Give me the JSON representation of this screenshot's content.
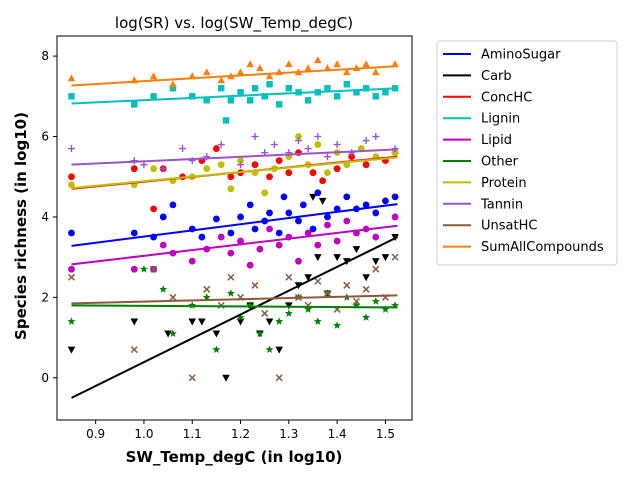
{
  "chart_data": {
    "type": "scatter",
    "title": "log(SR) vs. log(SW_Temp_degC)",
    "xlabel": "SW_Temp_degC (in log10)",
    "ylabel": "Species richness (in log10)",
    "xlim": [
      0.82,
      1.555
    ],
    "ylim": [
      -1.05,
      8.5
    ],
    "xticks": [
      0.9,
      1.0,
      1.1,
      1.2,
      1.3,
      1.4,
      1.5
    ],
    "yticks": [
      0,
      2,
      4,
      6,
      8
    ],
    "grid": false,
    "legend_position": "outside-right",
    "series": [
      {
        "name": "AminoSugar",
        "color": "#0000ff",
        "marker": "circle",
        "fit": [
          [
            0.85,
            3.28
          ],
          [
            1.525,
            4.32
          ]
        ],
        "points": [
          [
            0.85,
            3.6
          ],
          [
            0.98,
            3.6
          ],
          [
            1.02,
            3.5
          ],
          [
            1.04,
            4.0
          ],
          [
            1.06,
            4.3
          ],
          [
            1.1,
            3.7
          ],
          [
            1.12,
            3.5
          ],
          [
            1.15,
            3.95
          ],
          [
            1.18,
            3.6
          ],
          [
            1.2,
            4.0
          ],
          [
            1.22,
            4.3
          ],
          [
            1.23,
            3.7
          ],
          [
            1.25,
            3.9
          ],
          [
            1.26,
            4.1
          ],
          [
            1.28,
            3.6
          ],
          [
            1.29,
            4.5
          ],
          [
            1.3,
            4.1
          ],
          [
            1.32,
            3.9
          ],
          [
            1.33,
            4.3
          ],
          [
            1.35,
            3.7
          ],
          [
            1.36,
            4.6
          ],
          [
            1.38,
            4.0
          ],
          [
            1.4,
            4.2
          ],
          [
            1.42,
            4.5
          ],
          [
            1.44,
            4.2
          ],
          [
            1.46,
            4.3
          ],
          [
            1.48,
            4.1
          ],
          [
            1.5,
            4.4
          ],
          [
            1.52,
            4.5
          ]
        ]
      },
      {
        "name": "Carb",
        "color": "#000000",
        "marker": "triangle-down",
        "fit": [
          [
            0.85,
            -0.5
          ],
          [
            1.525,
            3.5
          ]
        ],
        "points": [
          [
            0.85,
            0.7
          ],
          [
            0.98,
            1.4
          ],
          [
            1.05,
            1.1
          ],
          [
            1.1,
            1.4
          ],
          [
            1.12,
            1.4
          ],
          [
            1.15,
            1.1
          ],
          [
            1.17,
            0.0
          ],
          [
            1.2,
            1.4
          ],
          [
            1.22,
            1.8
          ],
          [
            1.24,
            1.1
          ],
          [
            1.26,
            1.4
          ],
          [
            1.28,
            0.7
          ],
          [
            1.3,
            1.8
          ],
          [
            1.32,
            2.3
          ],
          [
            1.34,
            2.5
          ],
          [
            1.36,
            3.0
          ],
          [
            1.38,
            2.1
          ],
          [
            1.4,
            3.0
          ],
          [
            1.42,
            2.9
          ],
          [
            1.44,
            3.2
          ],
          [
            1.46,
            2.5
          ],
          [
            1.48,
            2.9
          ],
          [
            1.5,
            3.0
          ],
          [
            1.52,
            3.5
          ],
          [
            1.35,
            4.5
          ],
          [
            1.37,
            4.4
          ]
        ]
      },
      {
        "name": "ConcHC",
        "color": "#ff0000",
        "marker": "circle",
        "fit": [
          [
            0.85,
            4.7
          ],
          [
            1.525,
            5.5
          ]
        ],
        "points": [
          [
            0.85,
            5.0
          ],
          [
            0.98,
            5.2
          ],
          [
            1.02,
            4.2
          ],
          [
            1.04,
            5.2
          ],
          [
            1.08,
            5.0
          ],
          [
            1.12,
            5.4
          ],
          [
            1.15,
            5.7
          ],
          [
            1.18,
            5.0
          ],
          [
            1.2,
            5.1
          ],
          [
            1.23,
            5.3
          ],
          [
            1.26,
            5.0
          ],
          [
            1.28,
            5.4
          ],
          [
            1.3,
            5.1
          ],
          [
            1.32,
            5.6
          ],
          [
            1.35,
            5.1
          ],
          [
            1.37,
            4.9
          ],
          [
            1.4,
            5.2
          ],
          [
            1.43,
            5.5
          ],
          [
            1.46,
            5.3
          ],
          [
            1.5,
            5.4
          ],
          [
            1.52,
            5.6
          ]
        ]
      },
      {
        "name": "Lignin",
        "color": "#00bfbf",
        "marker": "square",
        "fit": [
          [
            0.85,
            6.82
          ],
          [
            1.525,
            7.2
          ]
        ],
        "points": [
          [
            0.85,
            7.0
          ],
          [
            0.98,
            6.8
          ],
          [
            1.02,
            7.0
          ],
          [
            1.06,
            7.2
          ],
          [
            1.1,
            7.0
          ],
          [
            1.13,
            6.9
          ],
          [
            1.16,
            7.2
          ],
          [
            1.18,
            6.9
          ],
          [
            1.2,
            7.1
          ],
          [
            1.22,
            6.9
          ],
          [
            1.23,
            7.2
          ],
          [
            1.25,
            7.0
          ],
          [
            1.26,
            7.3
          ],
          [
            1.28,
            6.8
          ],
          [
            1.3,
            7.2
          ],
          [
            1.32,
            7.1
          ],
          [
            1.34,
            6.9
          ],
          [
            1.36,
            7.1
          ],
          [
            1.38,
            7.2
          ],
          [
            1.4,
            7.0
          ],
          [
            1.42,
            7.3
          ],
          [
            1.44,
            7.1
          ],
          [
            1.46,
            7.2
          ],
          [
            1.48,
            7.0
          ],
          [
            1.5,
            7.1
          ],
          [
            1.52,
            7.2
          ],
          [
            1.17,
            6.4
          ]
        ]
      },
      {
        "name": "Lipid",
        "color": "#bf00bf",
        "marker": "circle",
        "fit": [
          [
            0.85,
            2.82
          ],
          [
            1.525,
            3.78
          ]
        ],
        "points": [
          [
            0.85,
            2.7
          ],
          [
            0.98,
            2.7
          ],
          [
            1.02,
            2.7
          ],
          [
            1.04,
            3.3
          ],
          [
            1.06,
            3.1
          ],
          [
            1.1,
            2.9
          ],
          [
            1.13,
            3.2
          ],
          [
            1.16,
            3.5
          ],
          [
            1.18,
            3.1
          ],
          [
            1.2,
            3.4
          ],
          [
            1.22,
            2.8
          ],
          [
            1.24,
            3.2
          ],
          [
            1.26,
            3.7
          ],
          [
            1.28,
            3.3
          ],
          [
            1.3,
            3.5
          ],
          [
            1.32,
            2.9
          ],
          [
            1.34,
            3.6
          ],
          [
            1.36,
            3.3
          ],
          [
            1.38,
            3.8
          ],
          [
            1.4,
            3.4
          ],
          [
            1.42,
            3.9
          ],
          [
            1.44,
            3.6
          ],
          [
            1.46,
            3.7
          ],
          [
            1.48,
            3.5
          ],
          [
            1.52,
            4.0
          ]
        ]
      },
      {
        "name": "Other",
        "color": "#008000",
        "marker": "star",
        "fit": [
          [
            0.85,
            1.8
          ],
          [
            1.525,
            1.75
          ]
        ],
        "points": [
          [
            0.85,
            1.4
          ],
          [
            1.0,
            2.7
          ],
          [
            1.04,
            2.2
          ],
          [
            1.06,
            1.1
          ],
          [
            1.1,
            1.8
          ],
          [
            1.13,
            2.0
          ],
          [
            1.15,
            0.7
          ],
          [
            1.18,
            2.1
          ],
          [
            1.2,
            1.5
          ],
          [
            1.22,
            1.8
          ],
          [
            1.24,
            1.1
          ],
          [
            1.26,
            0.7
          ],
          [
            1.28,
            1.4
          ],
          [
            1.3,
            1.6
          ],
          [
            1.32,
            2.0
          ],
          [
            1.34,
            1.7
          ],
          [
            1.36,
            1.4
          ],
          [
            1.38,
            2.1
          ],
          [
            1.4,
            1.3
          ],
          [
            1.42,
            2.0
          ],
          [
            1.44,
            1.8
          ],
          [
            1.46,
            1.5
          ],
          [
            1.48,
            1.9
          ],
          [
            1.5,
            1.7
          ],
          [
            1.52,
            1.8
          ]
        ]
      },
      {
        "name": "Protein",
        "color": "#bfbf00",
        "marker": "circle",
        "fit": [
          [
            0.85,
            4.72
          ],
          [
            1.525,
            5.48
          ]
        ],
        "points": [
          [
            0.85,
            4.8
          ],
          [
            0.98,
            4.8
          ],
          [
            1.02,
            5.2
          ],
          [
            1.06,
            4.9
          ],
          [
            1.1,
            5.0
          ],
          [
            1.13,
            5.2
          ],
          [
            1.16,
            5.3
          ],
          [
            1.18,
            4.7
          ],
          [
            1.2,
            5.4
          ],
          [
            1.23,
            5.1
          ],
          [
            1.25,
            4.6
          ],
          [
            1.27,
            5.2
          ],
          [
            1.3,
            5.5
          ],
          [
            1.32,
            6.0
          ],
          [
            1.34,
            5.3
          ],
          [
            1.36,
            5.8
          ],
          [
            1.38,
            5.1
          ],
          [
            1.4,
            5.6
          ],
          [
            1.42,
            5.3
          ],
          [
            1.45,
            5.7
          ],
          [
            1.48,
            5.5
          ],
          [
            1.52,
            5.6
          ]
        ]
      },
      {
        "name": "Tannin",
        "color": "#9955cc",
        "marker": "plus",
        "fit": [
          [
            0.85,
            5.3
          ],
          [
            1.525,
            5.68
          ]
        ],
        "points": [
          [
            0.85,
            5.7
          ],
          [
            0.98,
            5.4
          ],
          [
            1.0,
            5.3
          ],
          [
            1.04,
            5.2
          ],
          [
            1.08,
            5.7
          ],
          [
            1.1,
            5.4
          ],
          [
            1.13,
            5.5
          ],
          [
            1.16,
            5.8
          ],
          [
            1.2,
            5.3
          ],
          [
            1.23,
            6.0
          ],
          [
            1.25,
            5.6
          ],
          [
            1.27,
            5.8
          ],
          [
            1.3,
            5.6
          ],
          [
            1.32,
            5.9
          ],
          [
            1.34,
            5.7
          ],
          [
            1.36,
            6.0
          ],
          [
            1.38,
            5.5
          ],
          [
            1.4,
            5.8
          ],
          [
            1.43,
            5.6
          ],
          [
            1.46,
            5.9
          ],
          [
            1.48,
            6.0
          ],
          [
            1.52,
            5.7
          ]
        ]
      },
      {
        "name": "UnsatHC",
        "color": "#8b5a3c",
        "marker": "x",
        "fit": [
          [
            0.85,
            1.85
          ],
          [
            1.525,
            2.05
          ]
        ],
        "points": [
          [
            0.85,
            2.5
          ],
          [
            0.98,
            0.7
          ],
          [
            1.02,
            2.7
          ],
          [
            1.06,
            2.0
          ],
          [
            1.1,
            0.0
          ],
          [
            1.13,
            2.2
          ],
          [
            1.16,
            1.8
          ],
          [
            1.18,
            2.5
          ],
          [
            1.2,
            2.0
          ],
          [
            1.23,
            2.3
          ],
          [
            1.25,
            1.6
          ],
          [
            1.28,
            0.0
          ],
          [
            1.3,
            2.5
          ],
          [
            1.32,
            2.0
          ],
          [
            1.34,
            1.8
          ],
          [
            1.36,
            2.4
          ],
          [
            1.38,
            2.1
          ],
          [
            1.4,
            1.7
          ],
          [
            1.42,
            2.3
          ],
          [
            1.44,
            1.9
          ],
          [
            1.46,
            2.2
          ],
          [
            1.48,
            2.7
          ],
          [
            1.5,
            2.0
          ],
          [
            1.52,
            3.0
          ]
        ]
      },
      {
        "name": "SumAllCompounds",
        "color": "#ff7f0e",
        "marker": "triangle-up",
        "fit": [
          [
            0.85,
            7.27
          ],
          [
            1.525,
            7.75
          ]
        ],
        "points": [
          [
            0.85,
            7.45
          ],
          [
            0.98,
            7.4
          ],
          [
            1.02,
            7.5
          ],
          [
            1.06,
            7.3
          ],
          [
            1.1,
            7.5
          ],
          [
            1.13,
            7.6
          ],
          [
            1.16,
            7.4
          ],
          [
            1.18,
            7.5
          ],
          [
            1.2,
            7.6
          ],
          [
            1.22,
            7.8
          ],
          [
            1.24,
            7.7
          ],
          [
            1.26,
            7.5
          ],
          [
            1.28,
            7.6
          ],
          [
            1.3,
            7.8
          ],
          [
            1.32,
            7.6
          ],
          [
            1.34,
            7.7
          ],
          [
            1.36,
            7.9
          ],
          [
            1.38,
            7.7
          ],
          [
            1.4,
            7.8
          ],
          [
            1.42,
            7.6
          ],
          [
            1.44,
            7.7
          ],
          [
            1.46,
            7.8
          ],
          [
            1.48,
            7.6
          ],
          [
            1.52,
            7.8
          ]
        ]
      }
    ]
  }
}
